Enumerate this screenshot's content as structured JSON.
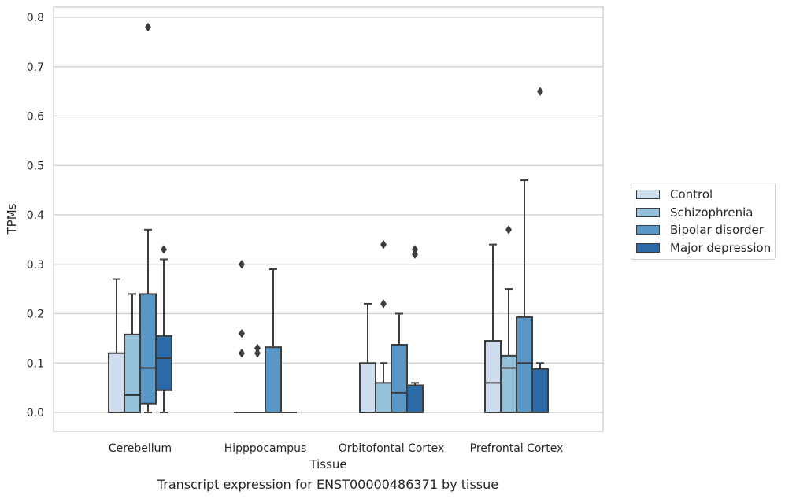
{
  "chart_data": {
    "type": "box",
    "caption": "Transcript expression for ENST00000486371 by tissue",
    "xlabel": "Tissue",
    "ylabel": "TPMs",
    "ylim": [
      -0.04,
      0.82
    ],
    "yticks": [
      0.0,
      0.1,
      0.2,
      0.3,
      0.4,
      0.5,
      0.6,
      0.7,
      0.8
    ],
    "ytick_labels": [
      "0.0",
      "0.1",
      "0.2",
      "0.3",
      "0.4",
      "0.5",
      "0.6",
      "0.7",
      "0.8"
    ],
    "grid": true,
    "legend_position": "right",
    "categories": [
      "Cerebellum",
      "Hipppocampus",
      "Orbitofontal Cortex",
      "Prefrontal Cortex"
    ],
    "series": [
      {
        "name": "Control",
        "color": "#cfdeef",
        "boxes": [
          {
            "q1": 0.0,
            "median": 0.0,
            "q3": 0.12,
            "whisker_low": 0.0,
            "whisker_high": 0.27,
            "outliers": []
          },
          {
            "q1": 0.0,
            "median": 0.0,
            "q3": 0.0,
            "whisker_low": 0.0,
            "whisker_high": 0.0,
            "outliers": [
              0.3,
              0.16,
              0.12
            ]
          },
          {
            "q1": 0.0,
            "median": 0.0,
            "q3": 0.1,
            "whisker_low": 0.0,
            "whisker_high": 0.22,
            "outliers": []
          },
          {
            "q1": 0.0,
            "median": 0.06,
            "q3": 0.145,
            "whisker_low": 0.0,
            "whisker_high": 0.34,
            "outliers": []
          }
        ]
      },
      {
        "name": "Schizophrenia",
        "color": "#94c0dc",
        "boxes": [
          {
            "q1": 0.0,
            "median": 0.035,
            "q3": 0.158,
            "whisker_low": 0.0,
            "whisker_high": 0.24,
            "outliers": []
          },
          {
            "q1": 0.0,
            "median": 0.0,
            "q3": 0.0,
            "whisker_low": 0.0,
            "whisker_high": 0.0,
            "outliers": [
              0.13,
              0.12
            ]
          },
          {
            "q1": 0.0,
            "median": 0.0,
            "q3": 0.06,
            "whisker_low": 0.0,
            "whisker_high": 0.1,
            "outliers": [
              0.34,
              0.22
            ]
          },
          {
            "q1": 0.0,
            "median": 0.09,
            "q3": 0.115,
            "whisker_low": 0.0,
            "whisker_high": 0.25,
            "outliers": [
              0.37
            ]
          }
        ]
      },
      {
        "name": "Bipolar disorder",
        "color": "#5897c6",
        "boxes": [
          {
            "q1": 0.018,
            "median": 0.09,
            "q3": 0.24,
            "whisker_low": 0.0,
            "whisker_high": 0.37,
            "outliers": [
              0.78
            ]
          },
          {
            "q1": 0.0,
            "median": 0.0,
            "q3": 0.132,
            "whisker_low": 0.0,
            "whisker_high": 0.29,
            "outliers": []
          },
          {
            "q1": 0.0,
            "median": 0.04,
            "q3": 0.137,
            "whisker_low": 0.0,
            "whisker_high": 0.2,
            "outliers": []
          },
          {
            "q1": 0.0,
            "median": 0.1,
            "q3": 0.193,
            "whisker_low": 0.0,
            "whisker_high": 0.47,
            "outliers": []
          }
        ]
      },
      {
        "name": "Major depression",
        "color": "#2b6aa6",
        "boxes": [
          {
            "q1": 0.045,
            "median": 0.11,
            "q3": 0.155,
            "whisker_low": 0.0,
            "whisker_high": 0.31,
            "outliers": [
              0.33
            ]
          },
          {
            "q1": 0.0,
            "median": 0.0,
            "q3": 0.0,
            "whisker_low": 0.0,
            "whisker_high": 0.0,
            "outliers": []
          },
          {
            "q1": 0.0,
            "median": 0.0,
            "q3": 0.055,
            "whisker_low": 0.0,
            "whisker_high": 0.06,
            "outliers": [
              0.33,
              0.32
            ]
          },
          {
            "q1": 0.0,
            "median": 0.0,
            "q3": 0.088,
            "whisker_low": 0.0,
            "whisker_high": 0.1,
            "outliers": [
              0.65
            ]
          }
        ]
      }
    ]
  }
}
